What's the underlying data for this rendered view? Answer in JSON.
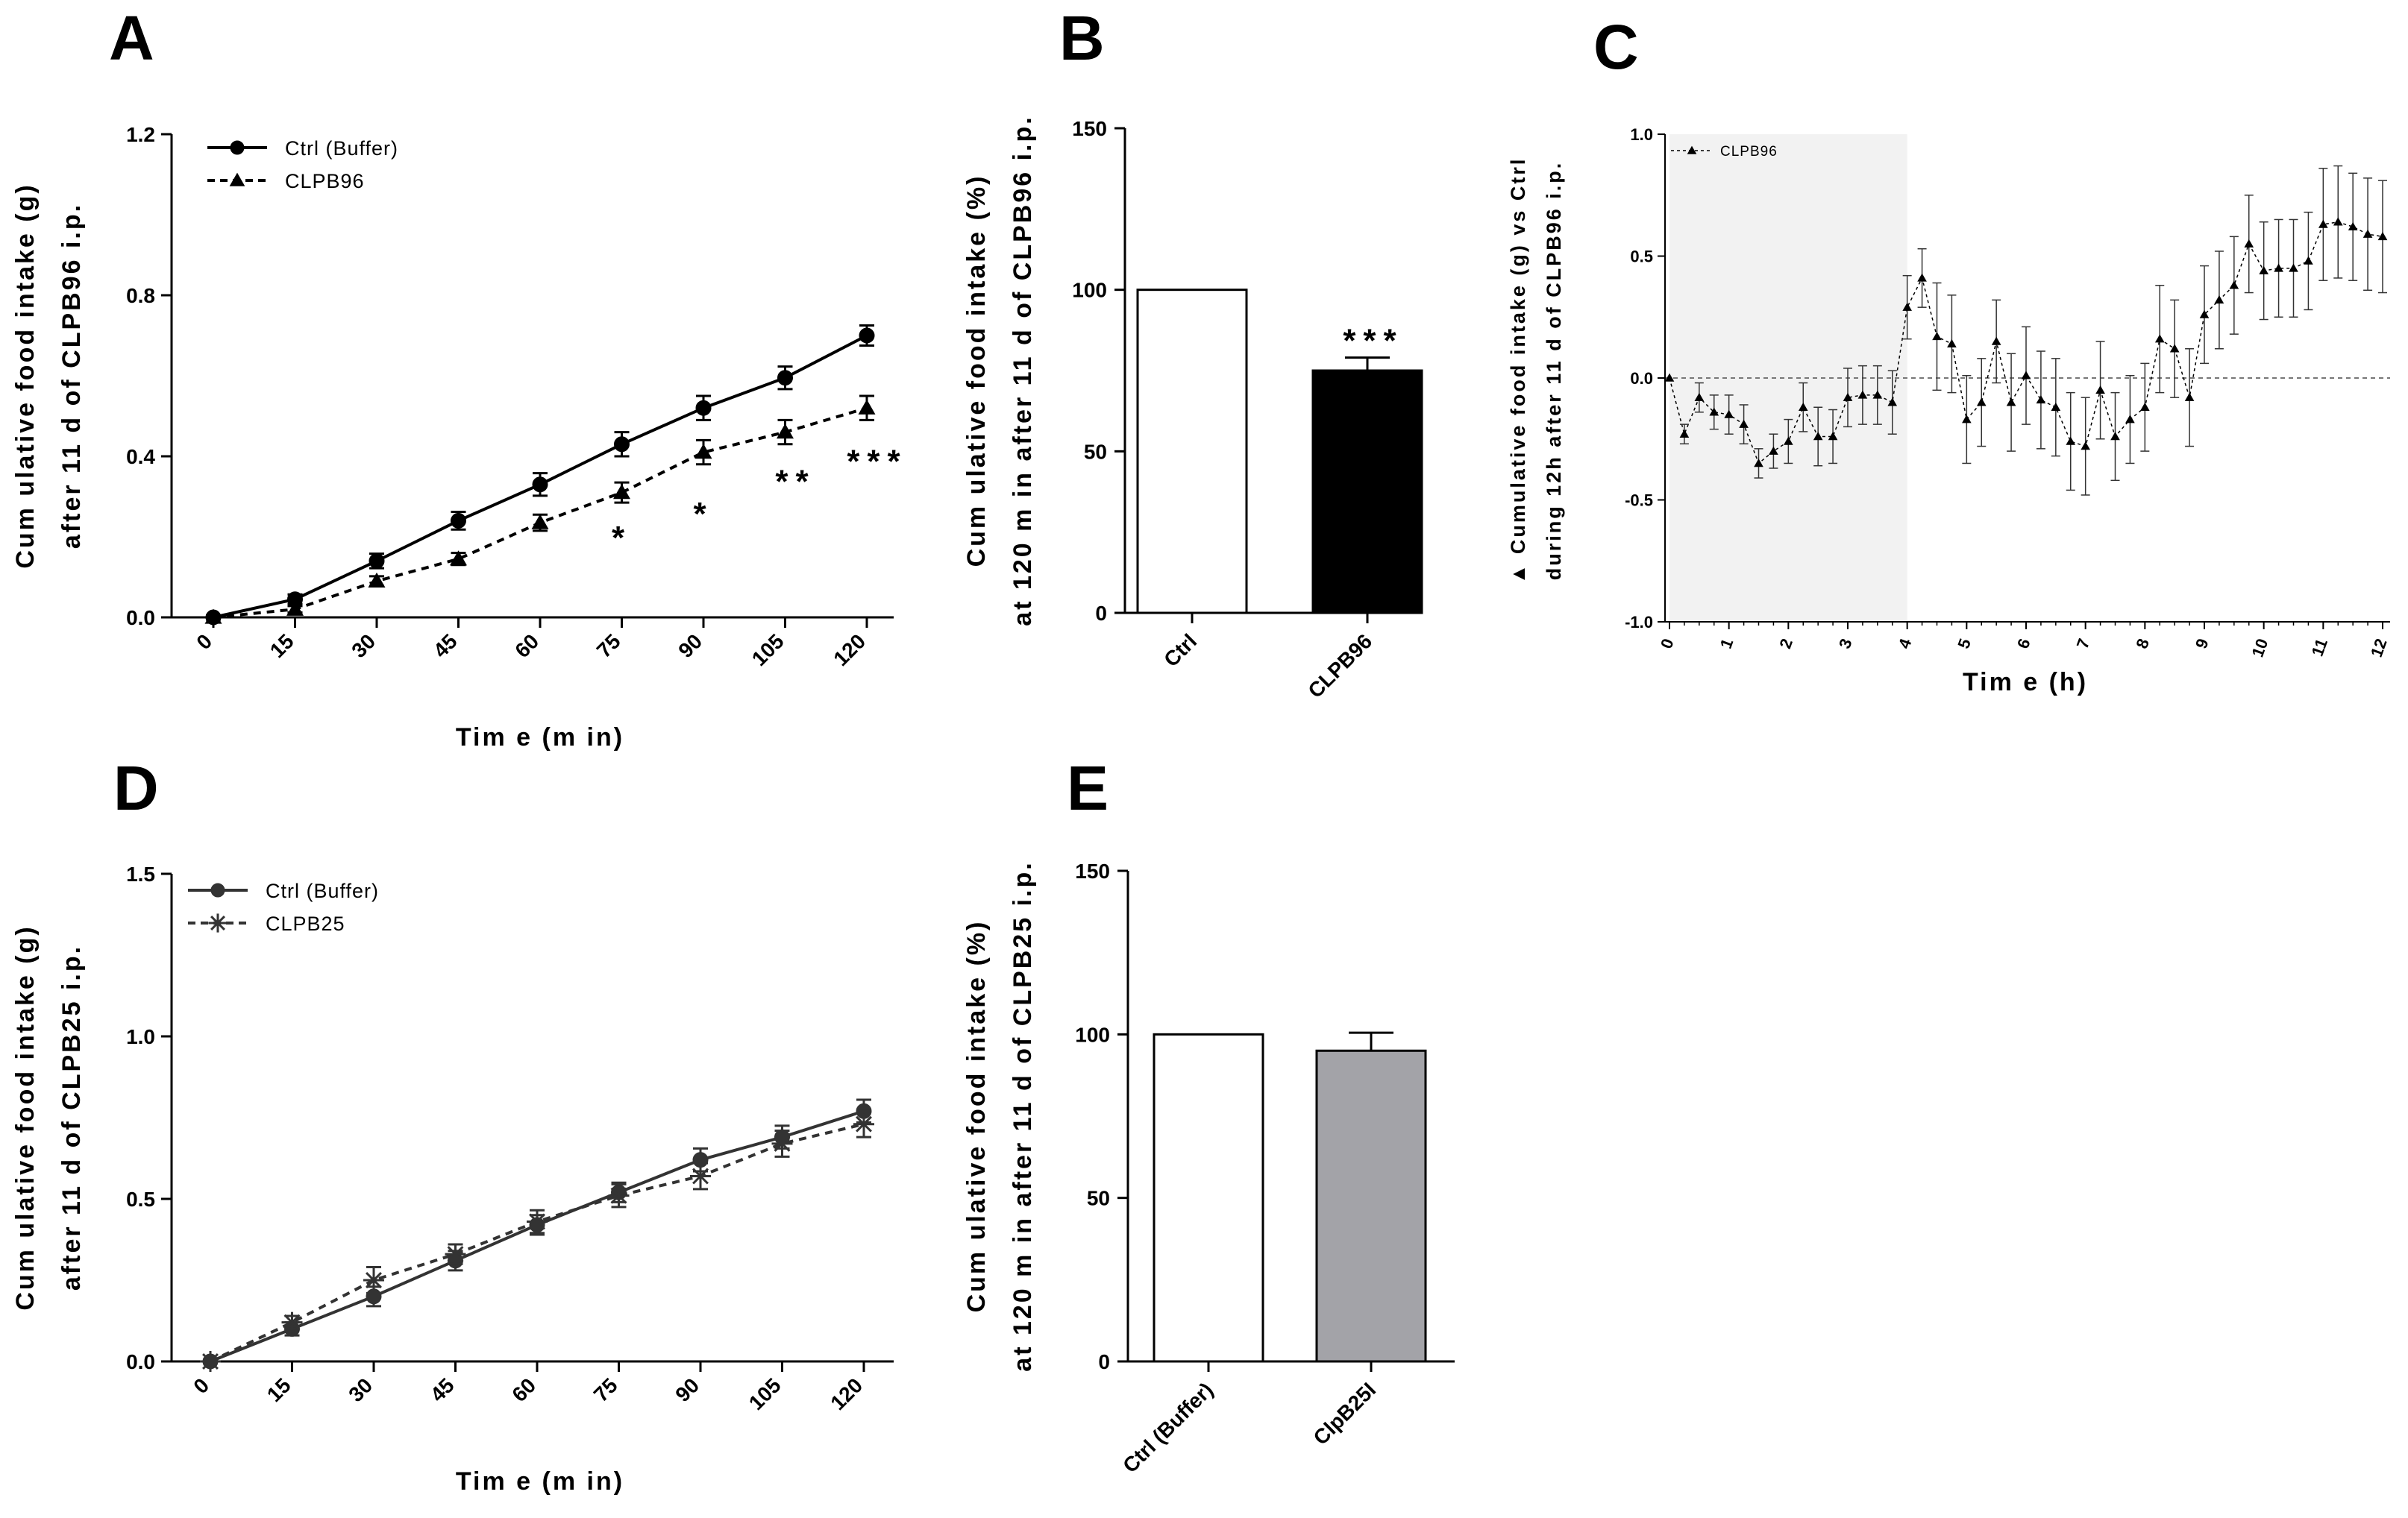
{
  "panels": {
    "A": "A",
    "B": "B",
    "C": "C",
    "D": "D",
    "E": "E"
  },
  "chart_data": [
    {
      "id": "A",
      "type": "line",
      "xlabel": "Tim e (m in)",
      "ylabel": [
        "Cum ulative food intake (g)",
        "after 11 d of CLPB96 i.p."
      ],
      "x": [
        0,
        15,
        30,
        45,
        60,
        75,
        90,
        105,
        120
      ],
      "x_ticks": [
        "0",
        "15",
        "30",
        "45",
        "60",
        "75",
        "90",
        "105",
        "120"
      ],
      "y_ticks": [
        "0.0",
        "0.4",
        "0.8",
        "1.2"
      ],
      "ylim": [
        0,
        1.2
      ],
      "grid": false,
      "legend_position": "top-left",
      "series": [
        {
          "name": "Ctrl (Buffer)",
          "marker": "circle",
          "line": "solid",
          "color": "#000000",
          "values": [
            0,
            0.045,
            0.14,
            0.24,
            0.33,
            0.43,
            0.52,
            0.595,
            0.7
          ],
          "errors": [
            0.005,
            0.012,
            0.018,
            0.022,
            0.028,
            0.03,
            0.03,
            0.028,
            0.025
          ]
        },
        {
          "name": "CLPB96",
          "marker": "triangle",
          "line": "dashed",
          "color": "#000000",
          "values": [
            0,
            0.02,
            0.09,
            0.145,
            0.235,
            0.31,
            0.41,
            0.46,
            0.52
          ],
          "errors": [
            0.005,
            0.008,
            0.012,
            0.015,
            0.02,
            0.025,
            0.03,
            0.03,
            0.03
          ]
        }
      ],
      "annotations": [
        {
          "x": 75,
          "y": 0.17,
          "text": "*"
        },
        {
          "x": 90,
          "y": 0.23,
          "text": "*"
        },
        {
          "x": 105,
          "y": 0.31,
          "text": "**"
        },
        {
          "x": 120,
          "y": 0.36,
          "text": "***"
        }
      ]
    },
    {
      "id": "B",
      "type": "bar",
      "ylabel": [
        "Cum ulative food intake (%)",
        "at 120 m in after 11 d of CLPB96 i.p."
      ],
      "categories": [
        "Ctrl",
        "CLPB96"
      ],
      "values": [
        100,
        75
      ],
      "errors": [
        0,
        4
      ],
      "colors": [
        "#ffffff",
        "#000000"
      ],
      "y_ticks": [
        "0",
        "50",
        "100",
        "150"
      ],
      "ylim": [
        0,
        150
      ],
      "annotations": [
        {
          "category": "CLPB96",
          "text": "***"
        }
      ]
    },
    {
      "id": "C",
      "type": "line",
      "xlabel": "Tim e (h)",
      "ylabel": [
        "Cumulative food intake (g) vs Ctrl",
        "during 12h after 11 d of CLPB96 i.p."
      ],
      "ylabel_prefix": "▲",
      "x_ticks": [
        "0",
        "1",
        "2",
        "3",
        "4",
        "5",
        "6",
        "7",
        "8",
        "9",
        "10",
        "11",
        "12"
      ],
      "y_ticks": [
        "-1.0",
        "-0.5",
        "0.0",
        "0.5",
        "1.0"
      ],
      "ylim": [
        -1.0,
        1.0
      ],
      "xlim": [
        0,
        12
      ],
      "shaded_region": [
        0,
        4
      ],
      "reference_line": 0,
      "legend_position": "top-left",
      "series": [
        {
          "name": "CLPB96",
          "marker": "triangle",
          "line": "dashed",
          "color": "#000000",
          "x": [
            0,
            0.25,
            0.5,
            0.75,
            1,
            1.25,
            1.5,
            1.75,
            2,
            2.25,
            2.5,
            2.75,
            3,
            3.25,
            3.5,
            3.75,
            4,
            4.25,
            4.5,
            4.75,
            5,
            5.25,
            5.5,
            5.75,
            6,
            6.25,
            6.5,
            6.75,
            7,
            7.25,
            7.5,
            7.75,
            8,
            8.25,
            8.5,
            8.75,
            9,
            9.25,
            9.5,
            9.75,
            10,
            10.25,
            10.5,
            10.75,
            11,
            11.25,
            11.5,
            11.75,
            12
          ],
          "values": [
            0,
            -0.23,
            -0.08,
            -0.14,
            -0.15,
            -0.19,
            -0.35,
            -0.3,
            -0.26,
            -0.12,
            -0.24,
            -0.24,
            -0.08,
            -0.07,
            -0.07,
            -0.1,
            0.29,
            0.41,
            0.17,
            0.14,
            -0.17,
            -0.1,
            0.15,
            -0.1,
            0.01,
            -0.09,
            -0.12,
            -0.26,
            -0.28,
            -0.05,
            -0.24,
            -0.17,
            -0.12,
            0.16,
            0.12,
            -0.08,
            0.26,
            0.32,
            0.38,
            0.55,
            0.44,
            0.45,
            0.45,
            0.48,
            0.63,
            0.64,
            0.62,
            0.59,
            0.58
          ],
          "errors": [
            0,
            0.04,
            0.06,
            0.07,
            0.08,
            0.08,
            0.06,
            0.07,
            0.09,
            0.1,
            0.12,
            0.11,
            0.12,
            0.12,
            0.12,
            0.13,
            0.13,
            0.12,
            0.22,
            0.2,
            0.18,
            0.18,
            0.17,
            0.2,
            0.2,
            0.2,
            0.2,
            0.2,
            0.2,
            0.2,
            0.18,
            0.18,
            0.18,
            0.22,
            0.2,
            0.2,
            0.2,
            0.2,
            0.2,
            0.2,
            0.2,
            0.2,
            0.2,
            0.2,
            0.23,
            0.23,
            0.22,
            0.23,
            0.23
          ]
        }
      ]
    },
    {
      "id": "D",
      "type": "line",
      "xlabel": "Tim e (m in)",
      "ylabel": [
        "Cum ulative food intake (g)",
        "after 11 d of CLPB25 i.p."
      ],
      "x": [
        0,
        15,
        30,
        45,
        60,
        75,
        90,
        105,
        120
      ],
      "x_ticks": [
        "0",
        "15",
        "30",
        "45",
        "60",
        "75",
        "90",
        "105",
        "120"
      ],
      "y_ticks": [
        "0.0",
        "0.5",
        "1.0",
        "1.5"
      ],
      "ylim": [
        0,
        1.5
      ],
      "legend_position": "top-left",
      "series": [
        {
          "name": "Ctrl (Buffer)",
          "marker": "circle",
          "line": "solid",
          "color": "#333333",
          "values": [
            0,
            0.1,
            0.2,
            0.31,
            0.42,
            0.52,
            0.62,
            0.69,
            0.77
          ],
          "errors": [
            0.005,
            0.02,
            0.03,
            0.03,
            0.03,
            0.03,
            0.035,
            0.035,
            0.035
          ]
        },
        {
          "name": "CLPB25",
          "marker": "asterisk",
          "line": "dashed",
          "color": "#333333",
          "values": [
            0,
            0.12,
            0.25,
            0.33,
            0.43,
            0.51,
            0.57,
            0.67,
            0.73
          ],
          "errors": [
            0.005,
            0.02,
            0.04,
            0.03,
            0.035,
            0.035,
            0.04,
            0.04,
            0.04
          ]
        }
      ]
    },
    {
      "id": "E",
      "type": "bar",
      "ylabel": [
        "Cum ulative food intake (%)",
        "at 120 m in after 11 d of CLPB25 i.p."
      ],
      "categories": [
        "Ctrl (Buffer)",
        "ClpB25I"
      ],
      "values": [
        100,
        95
      ],
      "errors": [
        0,
        5.5
      ],
      "colors": [
        "#ffffff",
        "#a3a3a8"
      ],
      "y_ticks": [
        "0",
        "50",
        "100",
        "150"
      ],
      "ylim": [
        0,
        150
      ]
    }
  ]
}
